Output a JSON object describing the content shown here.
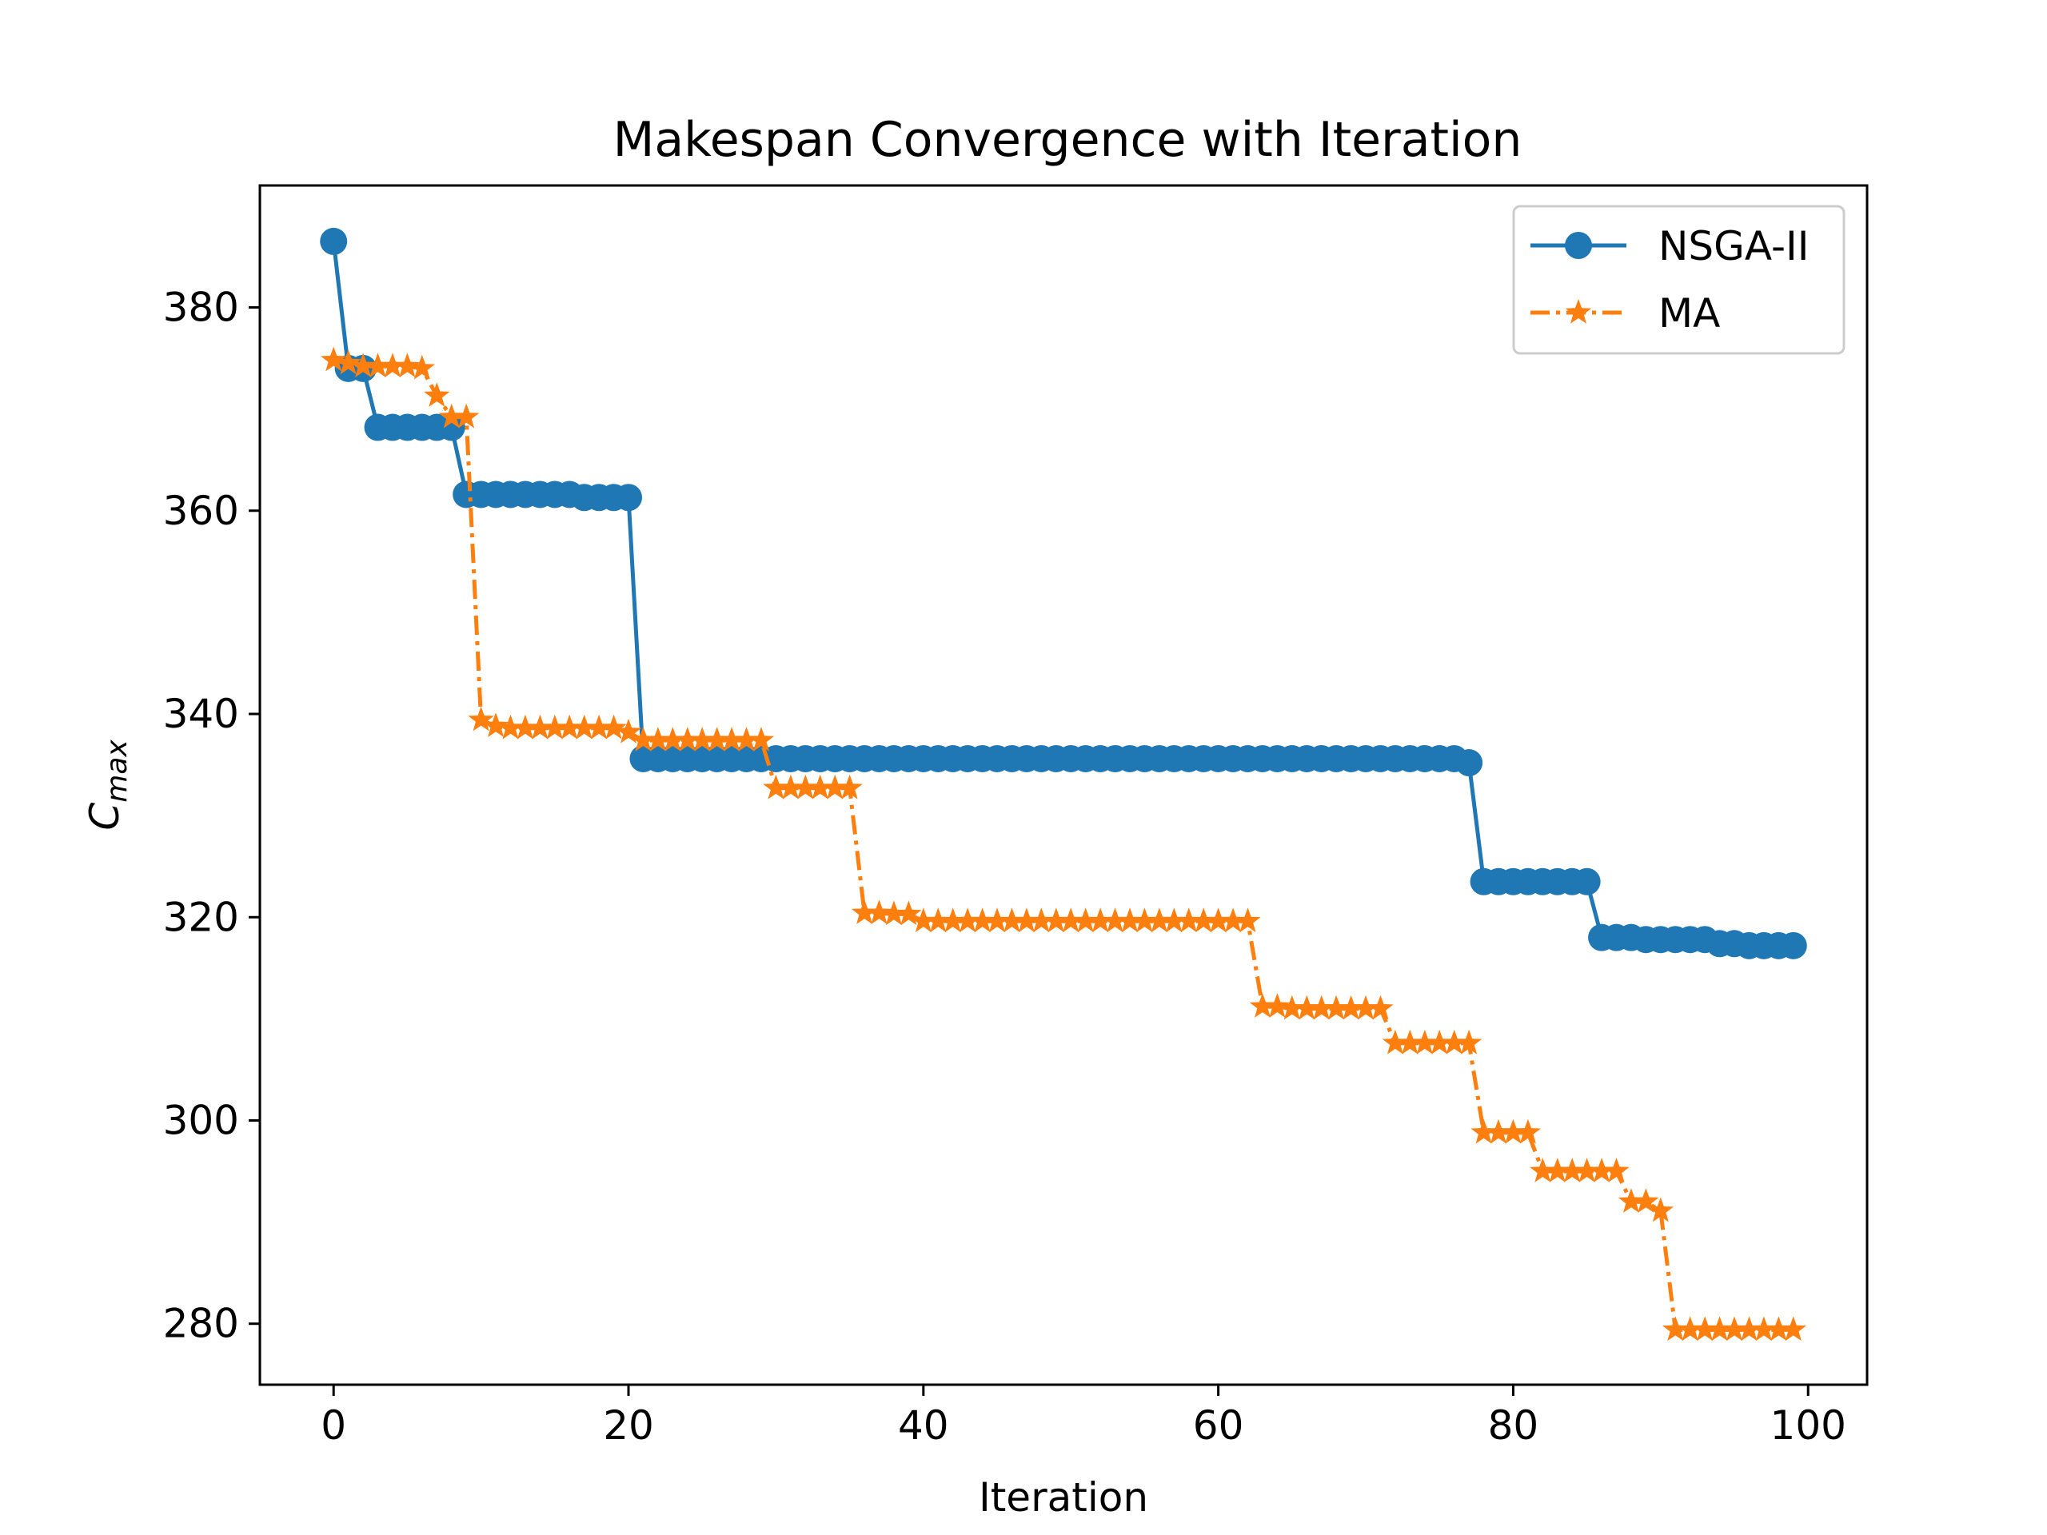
{
  "chart_data": {
    "type": "line",
    "title": "Makespan Convergence with Iteration",
    "xlabel": "Iteration",
    "ylabel_main": "C",
    "ylabel_sub": "max",
    "xlim": [
      -5,
      104
    ],
    "ylim": [
      274,
      392
    ],
    "xticks": [
      0,
      20,
      40,
      60,
      80,
      100
    ],
    "yticks": [
      280,
      300,
      320,
      340,
      360,
      380
    ],
    "legend_position": "top-right",
    "series": [
      {
        "name": "NSGA-II",
        "color": "#1f77b4",
        "marker": "circle",
        "linestyle": "solid",
        "x": [
          0,
          1,
          2,
          3,
          4,
          5,
          6,
          7,
          8,
          9,
          10,
          11,
          12,
          13,
          14,
          15,
          16,
          17,
          18,
          19,
          20,
          21,
          22,
          23,
          24,
          25,
          26,
          27,
          28,
          29,
          30,
          31,
          32,
          33,
          34,
          35,
          36,
          37,
          38,
          39,
          40,
          41,
          42,
          43,
          44,
          45,
          46,
          47,
          48,
          49,
          50,
          51,
          52,
          53,
          54,
          55,
          56,
          57,
          58,
          59,
          60,
          61,
          62,
          63,
          64,
          65,
          66,
          67,
          68,
          69,
          70,
          71,
          72,
          73,
          74,
          75,
          76,
          77,
          78,
          79,
          80,
          81,
          82,
          83,
          84,
          85,
          86,
          87,
          88,
          89,
          90,
          91,
          92,
          93,
          94,
          95,
          96,
          97,
          98,
          99
        ],
        "y": [
          386.5,
          374.0,
          374.0,
          368.2,
          368.2,
          368.2,
          368.2,
          368.2,
          368.2,
          361.6,
          361.6,
          361.6,
          361.6,
          361.6,
          361.6,
          361.6,
          361.6,
          361.3,
          361.3,
          361.3,
          361.3,
          335.6,
          335.6,
          335.6,
          335.6,
          335.6,
          335.6,
          335.6,
          335.6,
          335.6,
          335.6,
          335.6,
          335.6,
          335.6,
          335.6,
          335.6,
          335.6,
          335.6,
          335.6,
          335.6,
          335.6,
          335.6,
          335.6,
          335.6,
          335.6,
          335.6,
          335.6,
          335.6,
          335.6,
          335.6,
          335.6,
          335.6,
          335.6,
          335.6,
          335.6,
          335.6,
          335.6,
          335.6,
          335.6,
          335.6,
          335.6,
          335.6,
          335.6,
          335.6,
          335.6,
          335.6,
          335.6,
          335.6,
          335.6,
          335.6,
          335.6,
          335.6,
          335.6,
          335.6,
          335.6,
          335.6,
          335.6,
          335.2,
          323.5,
          323.5,
          323.5,
          323.5,
          323.5,
          323.5,
          323.5,
          323.5,
          318.0,
          318.0,
          318.0,
          317.8,
          317.8,
          317.8,
          317.8,
          317.8,
          317.4,
          317.4,
          317.2,
          317.2,
          317.2,
          317.2
        ]
      },
      {
        "name": "MA",
        "color": "#ff7f0e",
        "marker": "star",
        "linestyle": "dashdot",
        "x": [
          0,
          1,
          2,
          3,
          4,
          5,
          6,
          7,
          8,
          9,
          10,
          11,
          12,
          13,
          14,
          15,
          16,
          17,
          18,
          19,
          20,
          21,
          22,
          23,
          24,
          25,
          26,
          27,
          28,
          29,
          30,
          31,
          32,
          33,
          34,
          35,
          36,
          37,
          38,
          39,
          40,
          41,
          42,
          43,
          44,
          45,
          46,
          47,
          48,
          49,
          50,
          51,
          52,
          53,
          54,
          55,
          56,
          57,
          58,
          59,
          60,
          61,
          62,
          63,
          64,
          65,
          66,
          67,
          68,
          69,
          70,
          71,
          72,
          73,
          74,
          75,
          76,
          77,
          78,
          79,
          80,
          81,
          82,
          83,
          84,
          85,
          86,
          87,
          88,
          89,
          90,
          91,
          92,
          93,
          94,
          95,
          96,
          97,
          98,
          99
        ],
        "y": [
          374.8,
          374.5,
          374.2,
          374.2,
          374.2,
          374.2,
          374.0,
          371.3,
          369.2,
          369.2,
          339.4,
          338.8,
          338.6,
          338.6,
          338.6,
          338.6,
          338.6,
          338.6,
          338.6,
          338.6,
          338.2,
          337.4,
          337.4,
          337.4,
          337.4,
          337.4,
          337.4,
          337.4,
          337.4,
          337.4,
          332.7,
          332.7,
          332.7,
          332.7,
          332.7,
          332.7,
          320.4,
          320.4,
          320.3,
          320.3,
          319.6,
          319.6,
          319.6,
          319.6,
          319.6,
          319.6,
          319.6,
          319.6,
          319.6,
          319.6,
          319.6,
          319.6,
          319.6,
          319.6,
          319.6,
          319.6,
          319.6,
          319.6,
          319.6,
          319.6,
          319.6,
          319.6,
          319.6,
          311.2,
          311.2,
          311.0,
          311.0,
          311.0,
          311.0,
          311.0,
          311.0,
          311.0,
          307.6,
          307.6,
          307.6,
          307.6,
          307.6,
          307.6,
          298.8,
          298.8,
          298.8,
          298.8,
          295.0,
          295.0,
          295.0,
          295.0,
          295.0,
          295.0,
          292.0,
          292.0,
          291.1,
          279.4,
          279.4,
          279.4,
          279.4,
          279.4,
          279.4,
          279.4,
          279.4,
          279.4
        ]
      }
    ]
  }
}
